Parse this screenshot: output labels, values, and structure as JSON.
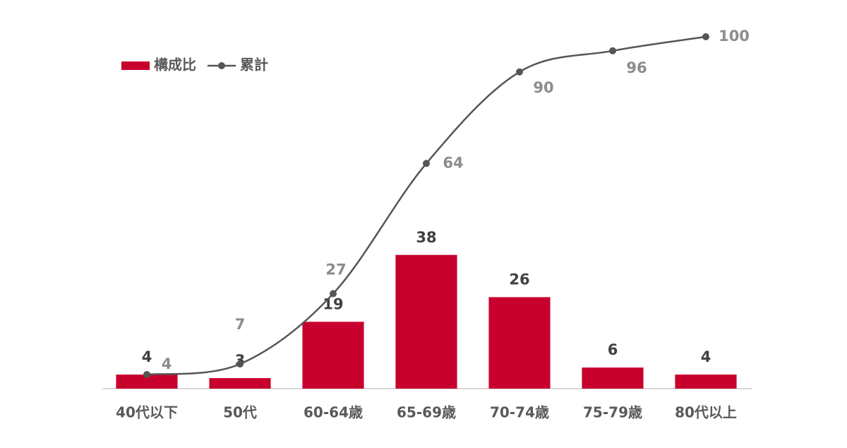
{
  "chart_data": {
    "type": "combo",
    "categories": [
      "40代以下",
      "50代",
      "60-64歳",
      "65-69歳",
      "70-74歳",
      "75-79歳",
      "80代以上"
    ],
    "ylim": [
      0,
      100
    ],
    "legend": "top-left",
    "series": [
      {
        "name": "構成比",
        "type": "bar",
        "color": "#c8002d",
        "values": [
          4,
          3,
          19,
          38,
          26,
          6,
          4
        ]
      },
      {
        "name": "累計",
        "type": "line",
        "color": "#555555",
        "values": [
          4,
          7,
          27,
          64,
          90,
          96,
          100
        ]
      }
    ]
  }
}
